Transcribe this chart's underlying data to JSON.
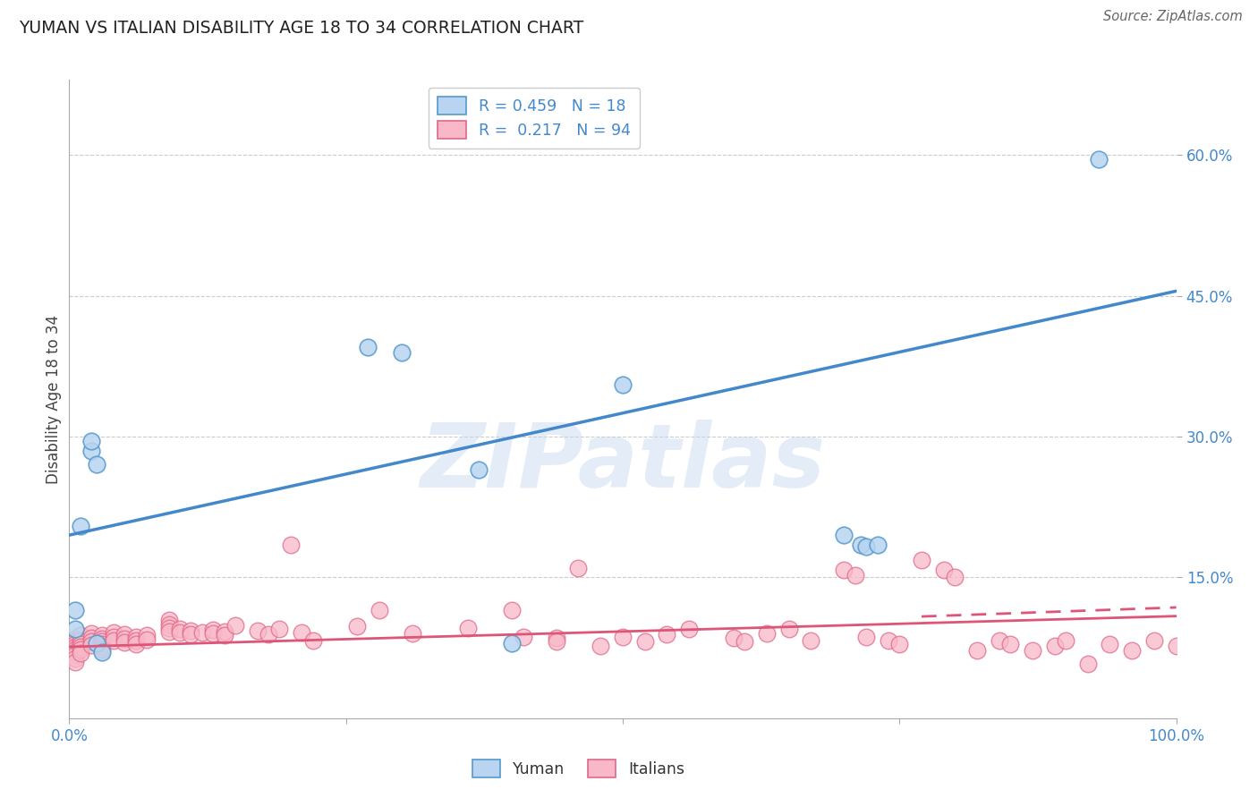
{
  "title": "YUMAN VS ITALIAN DISABILITY AGE 18 TO 34 CORRELATION CHART",
  "source": "Source: ZipAtlas.com",
  "ylabel": "Disability Age 18 to 34",
  "xlim": [
    0.0,
    1.0
  ],
  "ylim": [
    0.0,
    0.68
  ],
  "yticks": [
    0.15,
    0.3,
    0.45,
    0.6
  ],
  "ytick_labels": [
    "15.0%",
    "30.0%",
    "45.0%",
    "60.0%"
  ],
  "xticks": [
    0.0,
    0.25,
    0.5,
    0.75,
    1.0
  ],
  "xtick_labels": [
    "0.0%",
    "",
    "",
    "",
    "100.0%"
  ],
  "legend_yuman": "R = 0.459   N = 18",
  "legend_italians": "R =  0.217   N = 94",
  "legend_label_yuman": "Yuman",
  "legend_label_italians": "Italians",
  "yuman_color": "#b8d4f0",
  "yuman_edge_color": "#5599cc",
  "italians_color": "#f8b8c8",
  "italians_edge_color": "#e06888",
  "blue_line_color": "#4488cc",
  "pink_line_color": "#dd5577",
  "watermark": "ZIPatlas",
  "yuman_x": [
    0.005,
    0.005,
    0.01,
    0.02,
    0.02,
    0.025,
    0.025,
    0.03,
    0.27,
    0.3,
    0.5,
    0.7,
    0.715,
    0.72,
    0.73,
    0.93,
    0.37,
    0.4
  ],
  "yuman_y": [
    0.115,
    0.095,
    0.205,
    0.285,
    0.295,
    0.27,
    0.08,
    0.07,
    0.395,
    0.39,
    0.355,
    0.195,
    0.185,
    0.183,
    0.185,
    0.595,
    0.265,
    0.08
  ],
  "blue_line_x": [
    0.0,
    1.0
  ],
  "blue_line_y": [
    0.195,
    0.455
  ],
  "italians_x": [
    0.005,
    0.005,
    0.005,
    0.005,
    0.005,
    0.005,
    0.005,
    0.005,
    0.005,
    0.01,
    0.01,
    0.01,
    0.01,
    0.01,
    0.01,
    0.02,
    0.02,
    0.02,
    0.02,
    0.03,
    0.03,
    0.03,
    0.03,
    0.03,
    0.03,
    0.04,
    0.04,
    0.04,
    0.05,
    0.05,
    0.05,
    0.06,
    0.06,
    0.06,
    0.07,
    0.07,
    0.09,
    0.09,
    0.09,
    0.09,
    0.1,
    0.1,
    0.11,
    0.11,
    0.12,
    0.13,
    0.13,
    0.14,
    0.14,
    0.15,
    0.17,
    0.18,
    0.19,
    0.2,
    0.21,
    0.22,
    0.26,
    0.28,
    0.31,
    0.36,
    0.4,
    0.41,
    0.44,
    0.44,
    0.46,
    0.48,
    0.5,
    0.52,
    0.54,
    0.56,
    0.6,
    0.61,
    0.63,
    0.65,
    0.67,
    0.7,
    0.71,
    0.72,
    0.74,
    0.75,
    0.77,
    0.79,
    0.8,
    0.82,
    0.84,
    0.85,
    0.87,
    0.89,
    0.9,
    0.92,
    0.94,
    0.96,
    0.98,
    1.0
  ],
  "italians_y": [
    0.085,
    0.082,
    0.079,
    0.076,
    0.073,
    0.07,
    0.067,
    0.064,
    0.06,
    0.088,
    0.083,
    0.079,
    0.076,
    0.073,
    0.069,
    0.09,
    0.086,
    0.082,
    0.078,
    0.088,
    0.085,
    0.082,
    0.079,
    0.076,
    0.073,
    0.091,
    0.087,
    0.083,
    0.089,
    0.085,
    0.081,
    0.087,
    0.083,
    0.079,
    0.088,
    0.084,
    0.105,
    0.1,
    0.096,
    0.092,
    0.095,
    0.091,
    0.093,
    0.089,
    0.091,
    0.094,
    0.09,
    0.092,
    0.088,
    0.099,
    0.093,
    0.089,
    0.095,
    0.185,
    0.091,
    0.083,
    0.098,
    0.115,
    0.09,
    0.096,
    0.115,
    0.087,
    0.086,
    0.082,
    0.16,
    0.077,
    0.087,
    0.082,
    0.089,
    0.095,
    0.086,
    0.082,
    0.09,
    0.095,
    0.083,
    0.158,
    0.152,
    0.087,
    0.083,
    0.079,
    0.168,
    0.158,
    0.15,
    0.072,
    0.083,
    0.079,
    0.072,
    0.077,
    0.083,
    0.058,
    0.079,
    0.072,
    0.083,
    0.077
  ],
  "pink_line_x": [
    0.0,
    1.0
  ],
  "pink_line_y": [
    0.076,
    0.118
  ],
  "grid_color": "#cccccc",
  "grid_style": "--",
  "background_color": "#ffffff"
}
